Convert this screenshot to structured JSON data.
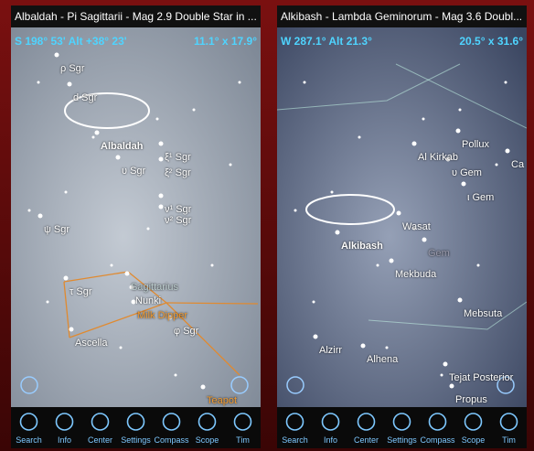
{
  "panels": [
    {
      "title": "Albaldah - Pi Sagittarii - Mag 2.9 Double Star in ...",
      "pointing": "S 198° 53' Alt +38° 23'",
      "fov": "11.1° x 17.9°",
      "labels": [
        "ρ Sgr",
        "d Sgr",
        "Albaldah",
        "ξ¹ Sgr",
        "υ Sgr",
        "ξ² Sgr",
        "ν¹ Sgr",
        "ν² Sgr",
        "ψ Sgr",
        "Sagittarius",
        "τ Sgr",
        "Nunki",
        "Milk Dipper",
        "φ Sgr",
        "Ascella",
        "Teapot"
      ],
      "toolbar": [
        "Search",
        "Info",
        "Center",
        "Settings",
        "Compass",
        "Scope",
        "Tim"
      ]
    },
    {
      "title": "Alkibash - Lambda Geminorum - Mag 3.6 Doubl...",
      "pointing": "W 287.1° Alt 21.3°",
      "fov": "20.5° x 31.6°",
      "labels": [
        "Pollux",
        "Al Kirkab",
        "υ Gem",
        "Ca",
        "ι Gem",
        "Wasat",
        "Alkibash",
        "Gem",
        "Mekbuda",
        "Mebsuta",
        "Alzirr",
        "Alhena",
        "Tejat Posterior",
        "Propus"
      ],
      "toolbar": [
        "Search",
        "Info",
        "Center",
        "Settings",
        "Compass",
        "Scope",
        "Tim"
      ]
    }
  ]
}
